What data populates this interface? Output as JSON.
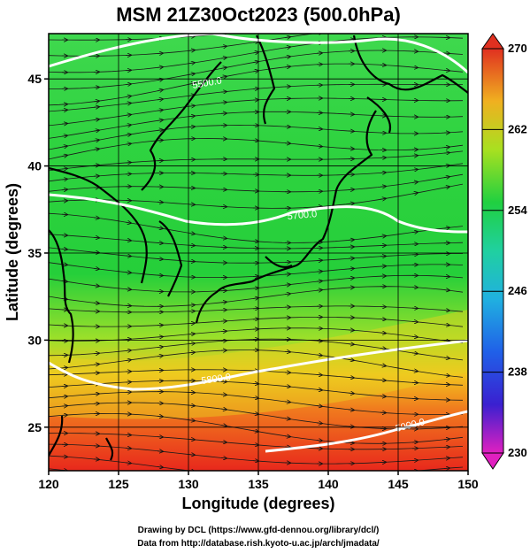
{
  "title": "MSM 21Z30Oct2023 (500.0hPa)",
  "x_axis": {
    "label": "Longitude (degrees)",
    "range": [
      120,
      150
    ],
    "ticks": [
      "120",
      "125",
      "130",
      "135",
      "140",
      "145",
      "150"
    ]
  },
  "y_axis": {
    "label": "Latitude  (degrees)",
    "range": [
      22.5,
      47.6
    ],
    "ticks": [
      "25",
      "30",
      "35",
      "40",
      "45"
    ]
  },
  "colorbar": {
    "range": [
      230,
      270
    ],
    "ticks": [
      "230",
      "238",
      "246",
      "254",
      "262",
      "270"
    ],
    "colors": [
      "#e020c0",
      "#3030d0",
      "#20a0e0",
      "#20d0a0",
      "#20d040",
      "#a0e020",
      "#f0c020",
      "#f07020",
      "#e03020"
    ]
  },
  "field_colors": {
    "north": "#39d64a",
    "mid": "#27cf3c",
    "south_warm": "#f2a41f",
    "far_south": "#e8291e"
  },
  "contours": [
    {
      "label": "5500.0"
    },
    {
      "label": "5700.0"
    },
    {
      "label": "5800.0"
    },
    {
      "label": "5900.0"
    }
  ],
  "credits": {
    "line1": "Drawing by DCL (https://www.gfd-dennou.org/library/dcl/)",
    "line2": "Data from http://database.rish.kyoto-u.ac.jp/arch/jmadata/"
  }
}
